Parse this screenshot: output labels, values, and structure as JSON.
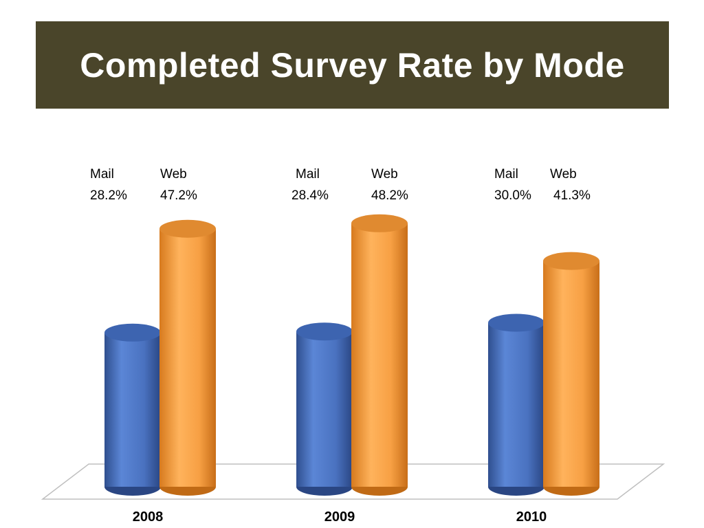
{
  "slide": {
    "title": "Completed Survey Rate by Mode",
    "title_bar_color": "#4a452a"
  },
  "chart_data": {
    "type": "bar",
    "style": "3d-cylinder",
    "title": "Completed Survey Rate by Mode",
    "categories": [
      "2008",
      "2009",
      "2010"
    ],
    "series": [
      {
        "name": "Mail",
        "values": [
          28.2,
          28.4,
          30.0
        ],
        "color": "#4f78c8"
      },
      {
        "name": "Web",
        "values": [
          47.2,
          48.2,
          41.3
        ],
        "color": "#f5a04a"
      }
    ],
    "data_labels": [
      {
        "mail_name": "Mail",
        "mail_value": "28.2%",
        "web_name": "Web",
        "web_value": "47.2%"
      },
      {
        "mail_name": "Mail",
        "mail_value": "28.4%",
        "web_name": "Web",
        "web_value": "48.2%"
      },
      {
        "mail_name": "Mail",
        "mail_value": "30.0%",
        "web_name": "Web",
        "web_value": "41.3%"
      }
    ],
    "ylim": [
      0,
      55
    ],
    "grid": false,
    "xlabel": "",
    "ylabel": ""
  }
}
